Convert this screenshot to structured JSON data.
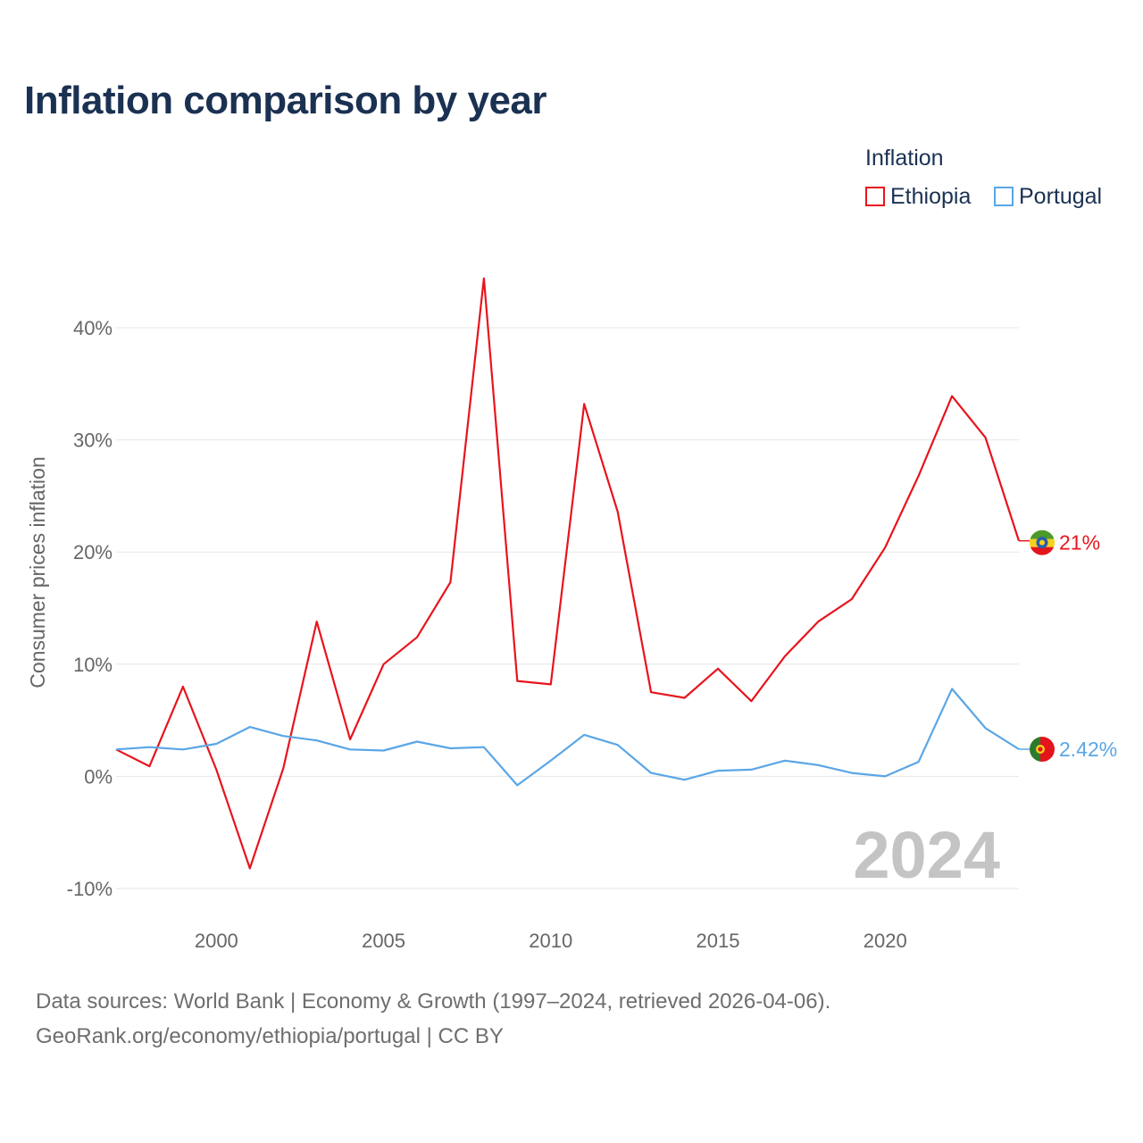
{
  "title": "Inflation comparison by year",
  "legend": {
    "title": "Inflation",
    "items": [
      {
        "label": "Ethiopia",
        "color": "#e8141c"
      },
      {
        "label": "Portugal",
        "color": "#5aa6e6"
      }
    ]
  },
  "chart_data": {
    "type": "line",
    "title": "Inflation comparison by year",
    "xlabel": "",
    "ylabel": "Consumer prices inflation",
    "x": [
      1997,
      1998,
      1999,
      2000,
      2001,
      2002,
      2003,
      2004,
      2005,
      2006,
      2007,
      2008,
      2009,
      2010,
      2011,
      2012,
      2013,
      2014,
      2015,
      2016,
      2017,
      2018,
      2019,
      2020,
      2021,
      2022,
      2023,
      2024
    ],
    "series": [
      {
        "name": "Ethiopia",
        "color": "#e8141c",
        "values": [
          2.4,
          0.9,
          8.0,
          0.6,
          -8.2,
          0.7,
          13.8,
          3.3,
          10.0,
          12.4,
          17.3,
          44.4,
          8.5,
          8.2,
          33.2,
          23.6,
          7.5,
          7.0,
          9.6,
          6.7,
          10.7,
          13.8,
          15.8,
          20.4,
          26.8,
          33.9,
          30.2,
          21.0
        ]
      },
      {
        "name": "Portugal",
        "color": "#5aa6e6",
        "values": [
          2.4,
          2.6,
          2.4,
          2.9,
          4.4,
          3.6,
          3.2,
          2.4,
          2.3,
          3.1,
          2.5,
          2.6,
          -0.8,
          1.4,
          3.7,
          2.8,
          0.3,
          -0.3,
          0.5,
          0.6,
          1.4,
          1.0,
          0.3,
          0.0,
          1.3,
          7.8,
          4.3,
          2.42
        ]
      }
    ],
    "end_labels": [
      "21%",
      "2.42%"
    ],
    "y_ticks": [
      -10,
      0,
      10,
      20,
      30,
      40
    ],
    "y_tick_labels": [
      "-10%",
      "0%",
      "10%",
      "20%",
      "30%",
      "40%"
    ],
    "x_ticks": [
      2000,
      2005,
      2010,
      2015,
      2020
    ],
    "x_tick_labels": [
      "2000",
      "2005",
      "2010",
      "2015",
      "2020"
    ],
    "xlim": [
      1997,
      2024
    ],
    "ylim": [
      -10,
      40
    ],
    "year_watermark": "2024",
    "grid": true
  },
  "footer": {
    "line1": "Data sources: World Bank | Economy & Growth (1997–2024, retrieved 2026-04-06).",
    "line2": "GeoRank.org/economy/ethiopia/portugal | CC BY"
  }
}
